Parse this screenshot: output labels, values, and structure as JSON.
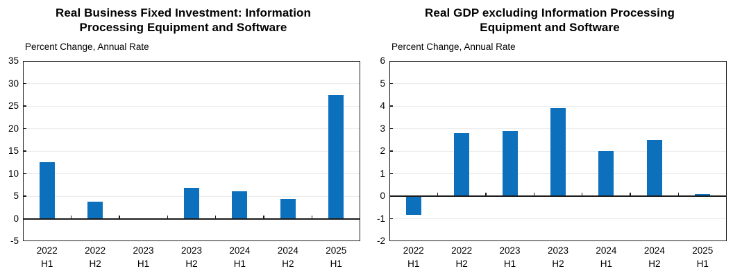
{
  "figure": {
    "background": "#ffffff",
    "axis_color": "#1a1a1a",
    "gridline_color": "#ececec"
  },
  "chart_data": [
    {
      "type": "bar",
      "title": "Real Business Fixed Investment: Information Processing Equipment and Software",
      "ylabel": "Percent Change, Annual Rate",
      "xlabel": "",
      "categories": [
        "2022 H1",
        "2022 H2",
        "2023 H1",
        "2023 H2",
        "2024 H1",
        "2024 H2",
        "2025 H1"
      ],
      "values": [
        12.5,
        3.7,
        0.1,
        6.9,
        6.1,
        4.4,
        27.5
      ],
      "ylim": [
        -5,
        35
      ],
      "ytick_step": 5,
      "yticks": [
        35,
        30,
        25,
        20,
        15,
        10,
        5,
        0,
        -5
      ],
      "bar_color": "#0d70bd",
      "grid": true,
      "legend": "none"
    },
    {
      "type": "bar",
      "title": "Real GDP excluding Information Processing Equipment and Software",
      "ylabel": "Percent Change, Annual Rate",
      "xlabel": "",
      "categories": [
        "2022 H1",
        "2022 H2",
        "2023 H1",
        "2023 H2",
        "2024 H1",
        "2024 H2",
        "2025 H1"
      ],
      "values": [
        -0.8,
        2.8,
        2.9,
        3.9,
        2.0,
        2.5,
        0.1
      ],
      "ylim": [
        -2,
        6
      ],
      "ytick_step": 1,
      "yticks": [
        6,
        5,
        4,
        3,
        2,
        1,
        0,
        -1,
        -2
      ],
      "bar_color": "#0d70bd",
      "grid": true,
      "legend": "none"
    }
  ]
}
